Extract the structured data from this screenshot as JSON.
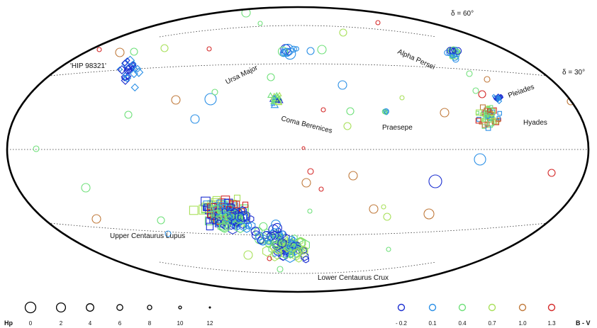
{
  "chart_data": {
    "type": "scatter",
    "projection": "Hammer-Aitoff all-sky",
    "grid": "dotted declination lines",
    "declination_labels": [
      "δ = 60°",
      "δ = 30°"
    ],
    "cluster_labels": [
      "'HIP 98321'",
      "Ursa Major",
      "Alpha Persei",
      "Pleiades",
      "Hyades",
      "Coma Berenices",
      "Praesepe",
      "Upper Centaurus Lupus",
      "Lower Centaurus Crux"
    ],
    "size_legend": {
      "title": "Hp",
      "labels": [
        "0",
        "2",
        "4",
        "6",
        "8",
        "10",
        "12"
      ],
      "values": [
        0,
        2,
        4,
        6,
        8,
        10,
        12
      ]
    },
    "color_legend": {
      "title": "B - V",
      "labels": [
        "- 0.2",
        "0.1",
        "0.4",
        "0.7",
        "1.0",
        "1.3"
      ],
      "values": [
        -0.2,
        0.1,
        0.4,
        0.7,
        1.0,
        1.3
      ],
      "colors": [
        "#1c2fd0",
        "#2a8fe6",
        "#6fe07a",
        "#a8e05a",
        "#c07a3c",
        "#d42a2a"
      ]
    },
    "marker_shapes": [
      "diamond",
      "circle",
      "triangle",
      "square",
      "hexagon"
    ]
  }
}
